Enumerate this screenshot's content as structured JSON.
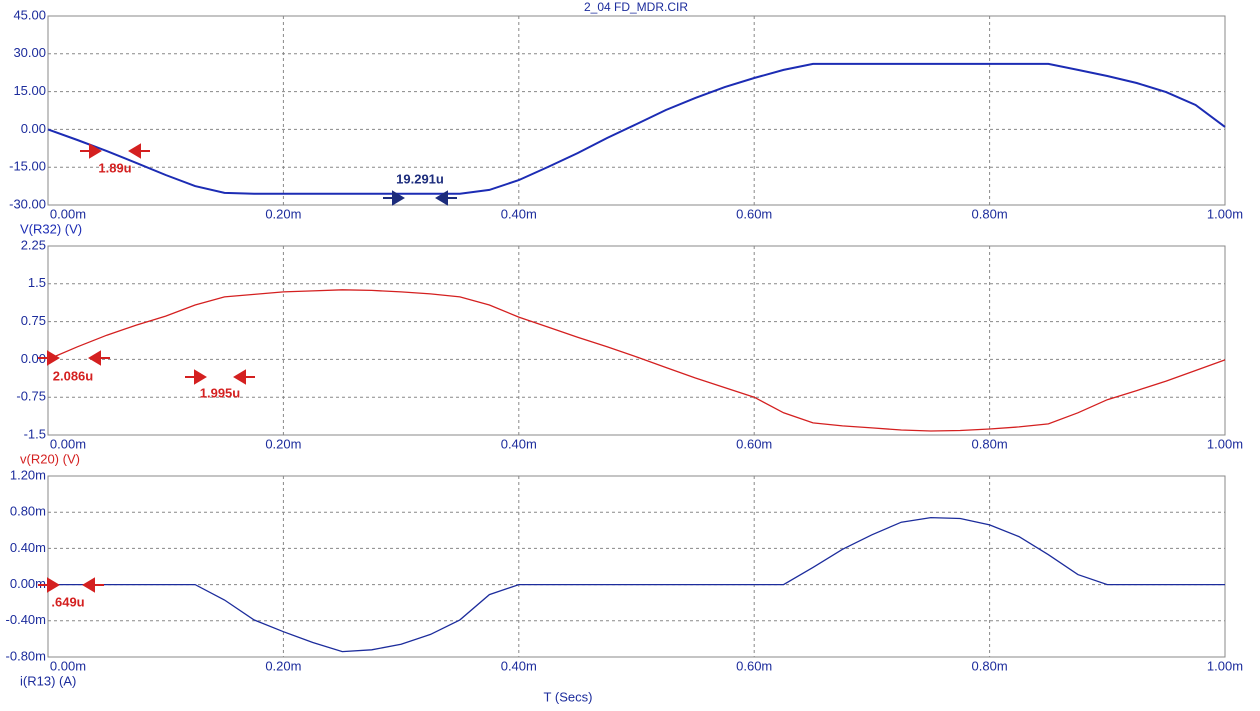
{
  "chart_data": [
    {
      "type": "line",
      "title": "2_04 FD_MDR.CIR",
      "x": [
        0,
        2.5e-05,
        5e-05,
        7.5e-05,
        0.0001,
        0.000125,
        0.00015,
        0.000175,
        0.0002,
        0.000225,
        0.00025,
        0.000275,
        0.0003,
        0.000325,
        0.00035,
        0.000375,
        0.0004,
        0.000425,
        0.00045,
        0.000475,
        0.0005,
        0.000525,
        0.00055,
        0.000575,
        0.0006,
        0.000625,
        0.00065,
        0.000675,
        0.0007,
        0.000725,
        0.00075,
        0.000775,
        0.0008,
        0.000825,
        0.00085,
        0.000875,
        0.0009,
        0.000925,
        0.00095,
        0.000975,
        0.001
      ],
      "series": [
        {
          "name": "V(R32) (V)",
          "color": "#1c2cb4",
          "values": [
            0,
            -4.2,
            -8.6,
            -13.3,
            -18.1,
            -22.5,
            -25.2,
            -25.5,
            -25.5,
            -25.5,
            -25.5,
            -25.5,
            -25.5,
            -25.5,
            -25.5,
            -24.0,
            -20.1,
            -14.9,
            -9.4,
            -3.4,
            2.1,
            7.7,
            12.5,
            16.8,
            20.4,
            23.6,
            26,
            26,
            26,
            26,
            26,
            26,
            26,
            26,
            26,
            23.6,
            21.2,
            18.4,
            14.8,
            9.7,
            1.0
          ]
        }
      ],
      "xlim": [
        0,
        0.001
      ],
      "xticks": [
        {
          "value": 0,
          "label": "0.00m"
        },
        {
          "value": 0.0002,
          "label": "0.20m"
        },
        {
          "value": 0.0004,
          "label": "0.40m"
        },
        {
          "value": 0.0006,
          "label": "0.60m"
        },
        {
          "value": 0.0008,
          "label": "0.80m"
        },
        {
          "value": 0.001,
          "label": "1.00m"
        }
      ],
      "ylim": [
        -30,
        45
      ],
      "yticks": [
        {
          "value": 45,
          "label": "45.00"
        },
        {
          "value": 30,
          "label": "30.00"
        },
        {
          "value": 15,
          "label": "15.00"
        },
        {
          "value": 0,
          "label": "0.00"
        },
        {
          "value": -15,
          "label": "-15.00"
        },
        {
          "value": -30,
          "label": "-30.00"
        }
      ],
      "grid": true,
      "annotations": [
        "1.89u",
        "19.291u"
      ]
    },
    {
      "type": "line",
      "x": [
        0,
        2.5e-05,
        5e-05,
        7.5e-05,
        0.0001,
        0.000125,
        0.00015,
        0.000175,
        0.0002,
        0.000225,
        0.00025,
        0.000275,
        0.0003,
        0.000325,
        0.00035,
        0.000375,
        0.0004,
        0.000425,
        0.00045,
        0.000475,
        0.0005,
        0.000525,
        0.00055,
        0.000575,
        0.0006,
        0.000625,
        0.00065,
        0.000675,
        0.0007,
        0.000725,
        0.00075,
        0.000775,
        0.0008,
        0.000825,
        0.00085,
        0.000875,
        0.0009,
        0.000925,
        0.00095,
        0.000975,
        0.001
      ],
      "series": [
        {
          "name": "v(R20) (V)",
          "color": "#d42020",
          "values": [
            0,
            0.25,
            0.48,
            0.68,
            0.86,
            1.08,
            1.24,
            1.29,
            1.34,
            1.36,
            1.38,
            1.37,
            1.34,
            1.3,
            1.24,
            1.08,
            0.84,
            0.64,
            0.44,
            0.25,
            0.05,
            -0.16,
            -0.37,
            -0.56,
            -0.75,
            -1.06,
            -1.26,
            -1.32,
            -1.36,
            -1.4,
            -1.42,
            -1.41,
            -1.38,
            -1.34,
            -1.28,
            -1.06,
            -0.8,
            -0.62,
            -0.43,
            -0.22,
            -0.01
          ]
        }
      ],
      "xlim": [
        0,
        0.001
      ],
      "xticks": [
        {
          "value": 0,
          "label": "0.00m"
        },
        {
          "value": 0.0002,
          "label": "0.20m"
        },
        {
          "value": 0.0004,
          "label": "0.40m"
        },
        {
          "value": 0.0006,
          "label": "0.60m"
        },
        {
          "value": 0.0008,
          "label": "0.80m"
        },
        {
          "value": 0.001,
          "label": "1.00m"
        }
      ],
      "ylim": [
        -1.5,
        2.25
      ],
      "yticks": [
        {
          "value": 2.25,
          "label": "2.25"
        },
        1.5,
        0.75,
        {
          "value": 0,
          "label": "0.00"
        },
        -0.75,
        -1.5
      ],
      "grid": true,
      "annotations": [
        "2.086u",
        "1.995u"
      ]
    },
    {
      "type": "line",
      "xlabel": "T (Secs)",
      "x": [
        0,
        2.5e-05,
        5e-05,
        7.5e-05,
        0.0001,
        0.000125,
        0.00015,
        0.000175,
        0.0002,
        0.000225,
        0.00025,
        0.000275,
        0.0003,
        0.000325,
        0.00035,
        0.000375,
        0.0004,
        0.000425,
        0.00045,
        0.000475,
        0.0005,
        0.000525,
        0.00055,
        0.000575,
        0.0006,
        0.000625,
        0.00065,
        0.000675,
        0.0007,
        0.000725,
        0.00075,
        0.000775,
        0.0008,
        0.000825,
        0.00085,
        0.000875,
        0.0009,
        0.000925,
        0.00095,
        0.000975,
        0.001
      ],
      "series": [
        {
          "name": "i(R13) (A)",
          "color": "#1c2c9c",
          "values": [
            0,
            0,
            0,
            0,
            0,
            0,
            -0.00017,
            -0.00039,
            -0.00052,
            -0.00064,
            -0.00074,
            -0.00072,
            -0.00066,
            -0.00055,
            -0.00039,
            -0.00011,
            0,
            0,
            0,
            0,
            0,
            0,
            0,
            0,
            0,
            0,
            0.00019,
            0.00039,
            0.00055,
            0.00069,
            0.00074,
            0.00073,
            0.00066,
            0.00053,
            0.00033,
            0.00011,
            0,
            0,
            0,
            0,
            0
          ]
        }
      ],
      "xlim": [
        0,
        0.001
      ],
      "xticks": [
        {
          "value": 0,
          "label": "0.00m"
        },
        {
          "value": 0.0002,
          "label": "0.20m"
        },
        {
          "value": 0.0004,
          "label": "0.40m"
        },
        {
          "value": 0.0006,
          "label": "0.60m"
        },
        {
          "value": 0.0008,
          "label": "0.80m"
        },
        {
          "value": 0.001,
          "label": "1.00m"
        }
      ],
      "ylim": [
        -0.0008,
        0.0012
      ],
      "yticks": [
        {
          "value": 0.0012,
          "label": "1.20m"
        },
        {
          "value": 0.0008,
          "label": "0.80m"
        },
        {
          "value": 0.0004,
          "label": "0.40m"
        },
        {
          "value": 0,
          "label": "0.00m"
        },
        {
          "value": -0.0004,
          "label": "-0.40m"
        },
        {
          "value": -0.0008,
          "label": "-0.80m"
        }
      ],
      "grid": true,
      "annotations": [
        ".649u"
      ]
    }
  ]
}
